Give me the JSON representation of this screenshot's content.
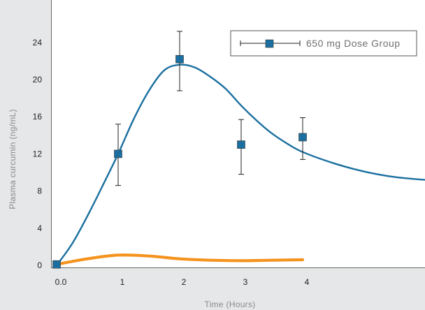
{
  "chart_data": {
    "type": "line",
    "xlabel": "Time (Hours)",
    "ylabel": "Plasma curcumin (ng/mL)",
    "xlim": [
      0,
      5.5
    ],
    "ylim": [
      0,
      28
    ],
    "x_ticks": [
      {
        "value": 0,
        "label": "0.0"
      },
      {
        "value": 1,
        "label": "1"
      },
      {
        "value": 2,
        "label": "2"
      },
      {
        "value": 3,
        "label": "3"
      },
      {
        "value": 4,
        "label": "4"
      }
    ],
    "y_ticks": [
      {
        "value": 0,
        "label": "0"
      },
      {
        "value": 4,
        "label": "4"
      },
      {
        "value": 8,
        "label": "8"
      },
      {
        "value": 12,
        "label": "12"
      },
      {
        "value": 16,
        "label": "16"
      },
      {
        "value": 20,
        "label": "20"
      },
      {
        "value": 24,
        "label": "24"
      }
    ],
    "grid": false,
    "legend_position": "top-right",
    "series": [
      {
        "name": "650 mg Dose Group",
        "color": "#1a6fa0",
        "marker": "square",
        "points": [
          {
            "x": 0,
            "y": 0.1,
            "err_low": 0.1,
            "err_high": 0.1
          },
          {
            "x": 1,
            "y": 12.0,
            "err_low": 8.6,
            "err_high": 15.2
          },
          {
            "x": 2,
            "y": 22.2,
            "err_low": 18.8,
            "err_high": 25.2
          },
          {
            "x": 3,
            "y": 13.0,
            "err_low": 9.8,
            "err_high": 15.7
          },
          {
            "x": 4,
            "y": 13.8,
            "err_low": 11.4,
            "err_high": 15.9
          }
        ],
        "fit_curve": [
          [
            0.0,
            0.0
          ],
          [
            0.25,
            2.3
          ],
          [
            0.5,
            5.3
          ],
          [
            0.75,
            8.6
          ],
          [
            1.0,
            12.0
          ],
          [
            1.25,
            15.7
          ],
          [
            1.5,
            18.8
          ],
          [
            1.75,
            21.0
          ],
          [
            2.0,
            21.6
          ],
          [
            2.25,
            21.3
          ],
          [
            2.5,
            20.3
          ],
          [
            2.75,
            19.0
          ],
          [
            3.0,
            17.2
          ],
          [
            3.25,
            15.6
          ],
          [
            3.5,
            14.2
          ],
          [
            3.75,
            13.1
          ],
          [
            4.0,
            12.2
          ],
          [
            4.5,
            11.0
          ],
          [
            5.0,
            10.1
          ],
          [
            5.5,
            9.5
          ],
          [
            6.0,
            9.2
          ]
        ]
      },
      {
        "color": "#f4931e",
        "marker": "none",
        "fit_curve": [
          [
            0.0,
            0.1
          ],
          [
            0.5,
            0.7
          ],
          [
            1.0,
            1.1
          ],
          [
            1.5,
            1.0
          ],
          [
            2.0,
            0.7
          ],
          [
            2.5,
            0.55
          ],
          [
            3.0,
            0.5
          ],
          [
            3.5,
            0.55
          ],
          [
            4.0,
            0.6
          ]
        ]
      }
    ]
  }
}
